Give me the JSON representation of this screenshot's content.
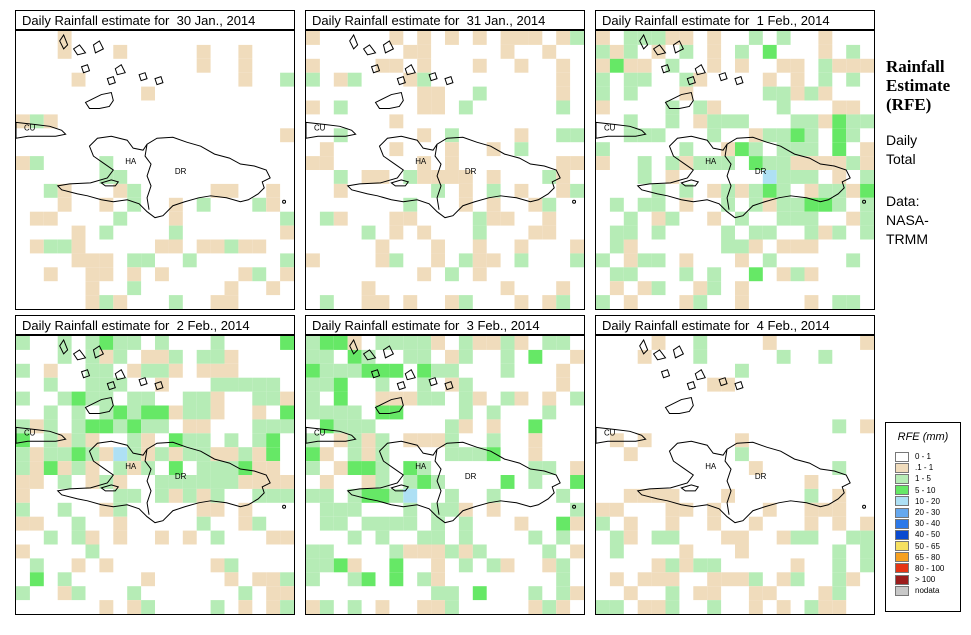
{
  "panels": [
    {
      "title": "Daily Rainfall estimate for  30 Jan., 2014",
      "seed": 11,
      "profile": "sparse-south"
    },
    {
      "title": "Daily Rainfall estimate for  31 Jan., 2014",
      "seed": 23,
      "profile": "sparse-all"
    },
    {
      "title": "Daily Rainfall estimate for  1 Feb., 2014",
      "seed": 37,
      "profile": "wet-east"
    },
    {
      "title": "Daily Rainfall estimate for  2 Feb., 2014",
      "seed": 41,
      "profile": "wet-north"
    },
    {
      "title": "Daily Rainfall estimate for  3 Feb., 2014",
      "seed": 53,
      "profile": "wet-west"
    },
    {
      "title": "Daily Rainfall estimate for  4 Feb., 2014",
      "seed": 67,
      "profile": "sparse-south"
    }
  ],
  "map_labels": {
    "cuba": "CU",
    "haiti": "HA",
    "dominican_republic": "DR"
  },
  "sidebar": {
    "title_line1": "Rainfall",
    "title_line2": "Estimate",
    "title_line3": "(RFE)",
    "subtitle_line1": "Daily",
    "subtitle_line2": "Total",
    "source_line1": "Data:",
    "source_line2": "NASA-",
    "source_line3": "TRMM"
  },
  "legend": {
    "title": "RFE (mm)",
    "items": [
      {
        "label": "0 - 1",
        "color": "#ffffff"
      },
      {
        "label": ".1 - 1",
        "color": "#f0dcbc"
      },
      {
        "label": "1 - 5",
        "color": "#b6ecb6"
      },
      {
        "label": "5 - 10",
        "color": "#66e866"
      },
      {
        "label": "10 - 20",
        "color": "#aee0f4"
      },
      {
        "label": "20 - 30",
        "color": "#66a8ee"
      },
      {
        "label": "30 - 40",
        "color": "#2c78e8"
      },
      {
        "label": "40 - 50",
        "color": "#0a4ad0"
      },
      {
        "label": "50 - 65",
        "color": "#f6e060"
      },
      {
        "label": "65 - 80",
        "color": "#f6a020"
      },
      {
        "label": "80 - 100",
        "color": "#e63414"
      },
      {
        "label": "> 100",
        "color": "#9c1c1c"
      },
      {
        "label": "nodata",
        "color": "#c8c8c8"
      }
    ]
  }
}
